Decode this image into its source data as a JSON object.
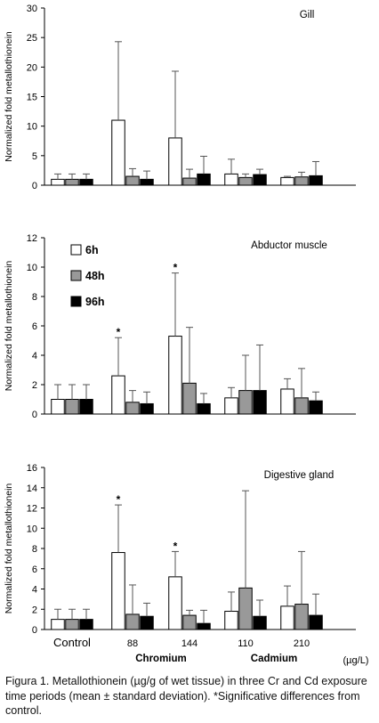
{
  "figure": {
    "caption": "Figura 1. Metallothionein (µg/g of wet tissue) in three Cr and Cd exposure time periods (mean ± standard deviation). *Significative differences from control."
  },
  "chart_data": [
    {
      "type": "bar",
      "title": "Gill",
      "ylabel": "Normalized fold metallothionein",
      "ylim": [
        0,
        30
      ],
      "yticks": [
        0,
        5,
        10,
        15,
        20,
        25,
        30
      ],
      "categories": [
        "Control",
        "88",
        "144",
        "110",
        "210"
      ],
      "series": [
        {
          "name": "6h",
          "color": "#ffffff",
          "values": [
            1.0,
            11.0,
            8.0,
            1.9,
            1.3
          ],
          "errors": [
            0.9,
            13.3,
            11.3,
            2.5,
            0.2
          ]
        },
        {
          "name": "48h",
          "color": "#999999",
          "values": [
            1.0,
            1.5,
            1.2,
            1.3,
            1.4
          ],
          "errors": [
            0.9,
            1.3,
            1.5,
            0.6,
            0.8
          ]
        },
        {
          "name": "96h",
          "color": "#000000",
          "values": [
            1.0,
            1.0,
            1.9,
            1.8,
            1.6
          ],
          "errors": [
            0.9,
            1.4,
            3.0,
            0.9,
            2.4
          ]
        }
      ],
      "significant": [],
      "legend": null
    },
    {
      "type": "bar",
      "title": "Abductor muscle",
      "ylabel": "Normalized fold metallothionein",
      "ylim": [
        0,
        12
      ],
      "yticks": [
        0,
        2,
        4,
        6,
        8,
        10,
        12
      ],
      "categories": [
        "Control",
        "88",
        "144",
        "110",
        "210"
      ],
      "series": [
        {
          "name": "6h",
          "color": "#ffffff",
          "values": [
            1.0,
            2.6,
            5.3,
            1.1,
            1.7
          ],
          "errors": [
            1.0,
            2.6,
            4.3,
            0.7,
            0.7
          ]
        },
        {
          "name": "48h",
          "color": "#999999",
          "values": [
            1.0,
            0.8,
            2.1,
            1.6,
            1.1
          ],
          "errors": [
            1.0,
            0.8,
            3.8,
            2.4,
            2.0
          ]
        },
        {
          "name": "96h",
          "color": "#000000",
          "values": [
            1.0,
            0.7,
            0.7,
            1.6,
            0.9
          ],
          "errors": [
            1.0,
            0.8,
            0.7,
            3.1,
            0.6
          ]
        }
      ],
      "significant": [
        {
          "category": "88",
          "series": "6h"
        },
        {
          "category": "144",
          "series": "6h"
        }
      ],
      "legend": {
        "placement": "top-left",
        "entries": [
          "6h",
          "48h",
          "96h"
        ]
      }
    },
    {
      "type": "bar",
      "title": "Digestive gland",
      "ylabel": "Normalized fold metallothionein",
      "ylim": [
        0,
        16
      ],
      "yticks": [
        0,
        2,
        4,
        6,
        8,
        10,
        12,
        14,
        16
      ],
      "categories": [
        "Control",
        "88",
        "144",
        "110",
        "210"
      ],
      "series": [
        {
          "name": "6h",
          "color": "#ffffff",
          "values": [
            1.0,
            7.6,
            5.2,
            1.8,
            2.3
          ],
          "errors": [
            1.0,
            4.7,
            2.5,
            1.9,
            2.0
          ]
        },
        {
          "name": "48h",
          "color": "#999999",
          "values": [
            1.0,
            1.5,
            1.4,
            4.1,
            2.5
          ],
          "errors": [
            1.0,
            2.9,
            0.5,
            9.6,
            5.2
          ]
        },
        {
          "name": "96h",
          "color": "#000000",
          "values": [
            1.0,
            1.3,
            0.6,
            1.3,
            1.4
          ],
          "errors": [
            1.0,
            1.3,
            1.3,
            1.6,
            2.1
          ]
        }
      ],
      "significant": [
        {
          "category": "88",
          "series": "6h"
        },
        {
          "category": "144",
          "series": "6h"
        }
      ],
      "legend": null
    }
  ],
  "xaxis": {
    "groups": [
      {
        "label": "Chromium",
        "categories": [
          "88",
          "144"
        ]
      },
      {
        "label": "Cadmium",
        "categories": [
          "110",
          "210"
        ]
      }
    ],
    "unit": "(µg/L)"
  }
}
